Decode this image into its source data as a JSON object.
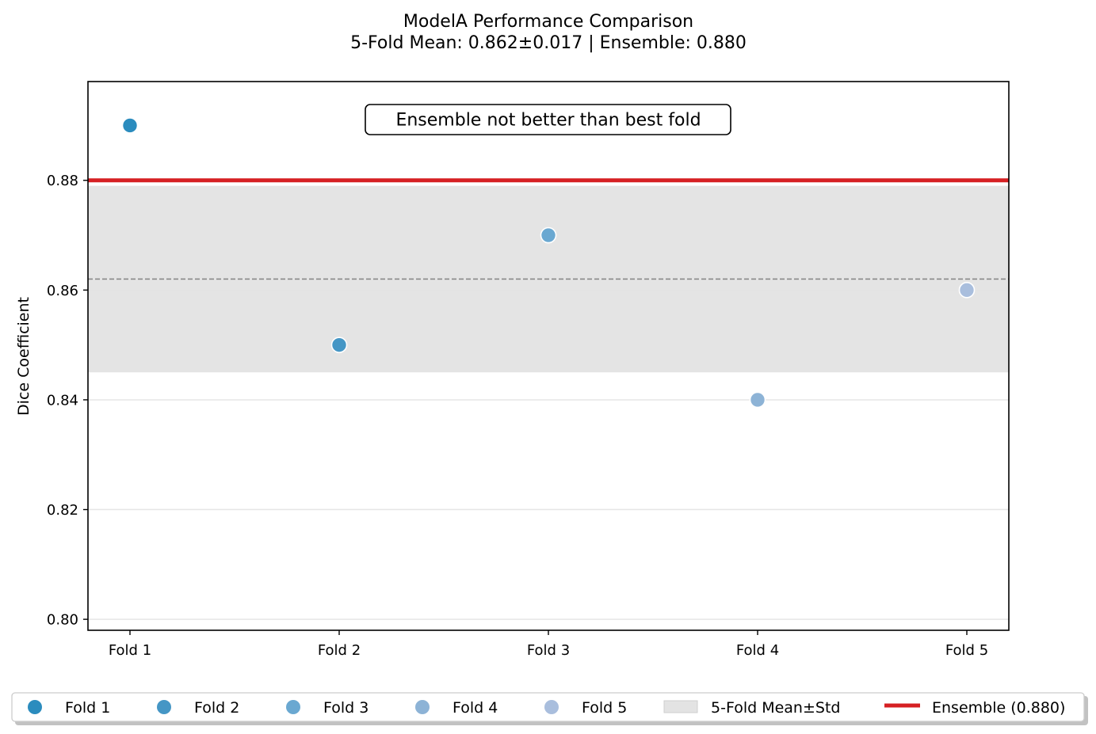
{
  "chart_data": {
    "type": "scatter",
    "title": "ModelA Performance Comparison",
    "subtitle": "5-Fold Mean: 0.862±0.017 | Ensemble: 0.880",
    "xlabel": "",
    "ylabel": "Dice Coefficient",
    "categories": [
      "Fold 1",
      "Fold 2",
      "Fold 3",
      "Fold 4",
      "Fold 5"
    ],
    "series": [
      {
        "name": "Fold 1",
        "x": "Fold 1",
        "y": 0.89,
        "color": "#2b8cbe"
      },
      {
        "name": "Fold 2",
        "x": "Fold 2",
        "y": 0.85,
        "color": "#4596c5"
      },
      {
        "name": "Fold 3",
        "x": "Fold 3",
        "y": 0.87,
        "color": "#6aa8d1"
      },
      {
        "name": "Fold 4",
        "x": "Fold 4",
        "y": 0.84,
        "color": "#8db3d6"
      },
      {
        "name": "Fold 5",
        "x": "Fold 5",
        "y": 0.86,
        "color": "#a9bedd"
      }
    ],
    "mean": 0.862,
    "std": 0.017,
    "band_label": "5-Fold Mean±Std",
    "band_color": "#e3e3e3",
    "mean_line_color": "#888888",
    "ensemble": {
      "value": 0.88,
      "label": "Ensemble (0.880)",
      "color": "#d62023"
    },
    "ylim": [
      0.798,
      0.898
    ],
    "yticks": [
      0.8,
      0.82,
      0.84,
      0.86,
      0.88
    ],
    "ytick_labels": [
      "0.80",
      "0.82",
      "0.84",
      "0.86",
      "0.88"
    ],
    "grid": "y",
    "annotation": "Ensemble not better than best fold",
    "legend_placement": "bottom"
  }
}
